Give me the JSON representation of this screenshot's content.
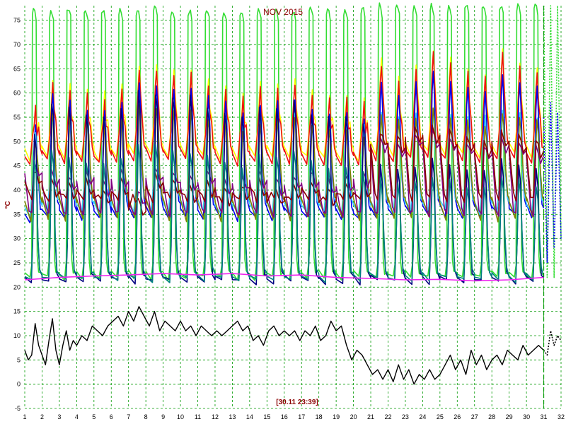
{
  "chart_data": {
    "type": "line",
    "title": "NOV 2015",
    "ylabel": "°C",
    "cursor_label": "[30.11 23:39]",
    "xlim": [
      1,
      32
    ],
    "ylim": [
      -5,
      78
    ],
    "x_ticks": [
      1,
      2,
      3,
      4,
      5,
      6,
      7,
      8,
      9,
      10,
      11,
      12,
      13,
      14,
      15,
      16,
      17,
      18,
      19,
      20,
      21,
      22,
      23,
      24,
      25,
      26,
      27,
      28,
      29,
      30,
      31,
      32
    ],
    "y_ticks": [
      -5,
      0,
      5,
      10,
      15,
      20,
      25,
      30,
      35,
      40,
      45,
      50,
      55,
      60,
      65,
      70,
      75
    ],
    "grid": true,
    "cursor_x": 31.0,
    "series": [
      {
        "color": "#33dd33",
        "kind": "collector",
        "style": "solid",
        "start": 1.0,
        "end": 31.0,
        "min": 22,
        "peak": [
          77.5,
          77,
          77.5,
          77,
          77,
          77.5,
          77,
          77.5,
          77,
          77,
          77.5,
          77,
          77,
          77.5,
          77,
          77,
          77.5,
          77,
          77,
          77.5,
          78,
          78,
          78,
          78,
          78,
          78,
          78,
          78,
          78,
          78
        ]
      },
      {
        "color": "#ffff00",
        "kind": "tank",
        "style": "solid",
        "start": 1.0,
        "end": 31.0,
        "min": 44,
        "peak": [
          58,
          63,
          62,
          61,
          60,
          62,
          66,
          66,
          65,
          65,
          63,
          62,
          60,
          62,
          62,
          63,
          61,
          60,
          60,
          59,
          67,
          63,
          66,
          69,
          67,
          65,
          64,
          69,
          66,
          65
        ]
      },
      {
        "color": "#ee1111",
        "kind": "tank",
        "style": "solid",
        "start": 1.0,
        "end": 31.0,
        "min": 43,
        "peak": [
          57,
          62,
          61,
          60,
          59,
          61,
          65,
          65,
          64,
          64,
          62,
          61,
          59,
          61,
          61,
          62,
          60,
          59,
          59,
          58,
          66,
          62,
          65,
          68,
          66,
          64,
          63,
          68,
          65,
          64
        ]
      },
      {
        "color": "#0000ee",
        "kind": "tank",
        "style": "solid",
        "start": 1.0,
        "end": 31.0,
        "min": 30,
        "peak": [
          54,
          60,
          58,
          57,
          56,
          58,
          62,
          62,
          61,
          61,
          59,
          58,
          56,
          58,
          58,
          59,
          57,
          56,
          56,
          55,
          62,
          60,
          62,
          64,
          62,
          61,
          60,
          64,
          62,
          61
        ]
      },
      {
        "color": "#33ccff",
        "kind": "tank",
        "style": "solid",
        "start": 1.0,
        "end": 31.0,
        "min": 32,
        "peak": [
          52,
          56,
          55,
          54,
          54,
          55,
          58,
          58,
          57,
          57,
          56,
          55,
          54,
          55,
          55,
          56,
          54,
          54,
          54,
          53,
          56,
          55,
          56,
          57,
          56,
          55,
          55,
          57,
          56,
          55
        ]
      },
      {
        "color": "#808000",
        "kind": "olive",
        "style": "solid",
        "start": 1.0,
        "end": 31.0,
        "min": 34,
        "peak": [
          50,
          56,
          55,
          54,
          53,
          55,
          58,
          57,
          56,
          56,
          55,
          54,
          52,
          54,
          54,
          55,
          53,
          52,
          52,
          51,
          55,
          54,
          55,
          57,
          55,
          54,
          53,
          56,
          55,
          54
        ]
      },
      {
        "color": "#800080",
        "kind": "mid",
        "style": "solid",
        "start": 1.0,
        "end": 31.0,
        "min": 35,
        "peak": [
          46,
          44,
          43,
          44,
          42,
          44,
          40,
          45,
          44,
          43,
          44,
          42,
          43,
          44,
          42,
          43,
          44,
          42,
          43,
          44,
          51,
          50,
          52,
          52,
          51,
          50,
          49,
          51,
          50,
          49
        ]
      },
      {
        "color": "#8b0000",
        "kind": "mid",
        "style": "solid",
        "start": 1.0,
        "end": 31.0,
        "min": 38,
        "peak": [
          44,
          42,
          41,
          42,
          40,
          42,
          38,
          43,
          42,
          41,
          42,
          40,
          41,
          42,
          40,
          41,
          42,
          40,
          41,
          42,
          52,
          51,
          53,
          53,
          52,
          51,
          50,
          52,
          51,
          50
        ]
      },
      {
        "color": "#000080",
        "kind": "return",
        "style": "solid",
        "start": 1.0,
        "end": 31.0,
        "min": 21,
        "peak": [
          52,
          58,
          57,
          56,
          55,
          57,
          60,
          60,
          59,
          59,
          57,
          56,
          55,
          57,
          57,
          58,
          56,
          55,
          55,
          54,
          45,
          44,
          45,
          46,
          45,
          44,
          44,
          46,
          45,
          44
        ]
      },
      {
        "color": "#008080",
        "kind": "return",
        "style": "solid",
        "start": 1.0,
        "end": 31.0,
        "min": 21.5,
        "peak": [
          46,
          48,
          47,
          46,
          45,
          47,
          49,
          49,
          48,
          48,
          47,
          46,
          45,
          47,
          47,
          48,
          46,
          45,
          45,
          44,
          42,
          41,
          42,
          43,
          42,
          41,
          41,
          43,
          42,
          41
        ]
      },
      {
        "color": "#ee22ee",
        "kind": "room",
        "style": "solid",
        "x": [
          1,
          3,
          5,
          7,
          9,
          11,
          13,
          15,
          17,
          19,
          21,
          23,
          25,
          27,
          29,
          31
        ],
        "y": [
          21.5,
          22,
          22.3,
          22.5,
          22.8,
          22.5,
          22.8,
          22.3,
          22.5,
          22.0,
          21.8,
          21.5,
          21.6,
          21.3,
          21.5,
          22.0
        ]
      },
      {
        "color": "#000000",
        "kind": "outdoor",
        "style": "solid",
        "x": [
          1,
          1.2,
          1.4,
          1.6,
          1.8,
          2.0,
          2.2,
          2.4,
          2.6,
          2.8,
          3.0,
          3.2,
          3.4,
          3.6,
          3.8,
          4.0,
          4.3,
          4.6,
          4.9,
          5.2,
          5.5,
          5.8,
          6.1,
          6.4,
          6.7,
          7.0,
          7.3,
          7.6,
          7.9,
          8.2,
          8.5,
          8.8,
          9.1,
          9.4,
          9.7,
          10.0,
          10.3,
          10.6,
          10.9,
          11.2,
          11.5,
          11.8,
          12.1,
          12.4,
          12.7,
          13.0,
          13.3,
          13.6,
          13.9,
          14.2,
          14.5,
          14.8,
          15.1,
          15.4,
          15.7,
          16.0,
          16.3,
          16.6,
          16.9,
          17.2,
          17.5,
          17.8,
          18.1,
          18.4,
          18.7,
          19.0,
          19.3,
          19.6,
          19.9,
          20.2,
          20.5,
          20.8,
          21.1,
          21.4,
          21.7,
          22.0,
          22.3,
          22.6,
          22.9,
          23.2,
          23.5,
          23.8,
          24.1,
          24.4,
          24.7,
          25.0,
          25.3,
          25.6,
          25.9,
          26.2,
          26.5,
          26.8,
          27.1,
          27.4,
          27.7,
          28.0,
          28.3,
          28.6,
          28.9,
          29.2,
          29.5,
          29.8,
          30.1,
          30.4,
          30.7,
          31.0
        ],
        "y": [
          7,
          5,
          6,
          12.5,
          8,
          6,
          4,
          9,
          13.5,
          7,
          4,
          8,
          11,
          7,
          9,
          8,
          10,
          9,
          12,
          11,
          10,
          12,
          13,
          14,
          12,
          15,
          13,
          16,
          14,
          12,
          15,
          11,
          13,
          12,
          11,
          13,
          11,
          12,
          10,
          12,
          11,
          10,
          11,
          10,
          11,
          12,
          13,
          11,
          12,
          9,
          10,
          8,
          11,
          12,
          10,
          11,
          10,
          11,
          9,
          11,
          10,
          12,
          9,
          10,
          13,
          11,
          12,
          8,
          5,
          7,
          6,
          4,
          2,
          3,
          1,
          3,
          0.5,
          4,
          1,
          3,
          0,
          2,
          1,
          3,
          1,
          2,
          4,
          6,
          3,
          5,
          2,
          7,
          4,
          6,
          3,
          5,
          6,
          4,
          7,
          6,
          5,
          8,
          6,
          7,
          8,
          7
        ]
      },
      {
        "color": "#33dd33",
        "kind": "future",
        "style": "dotted",
        "x": [
          31.0,
          31.2,
          31.4,
          31.6,
          31.8,
          32.0
        ],
        "y": [
          78,
          22,
          78,
          22,
          78,
          30
        ]
      },
      {
        "color": "#0000ee",
        "kind": "future",
        "style": "dotted",
        "x": [
          31.0,
          31.2,
          31.4,
          31.6,
          31.8,
          32.0
        ],
        "y": [
          55,
          25,
          58,
          28,
          56,
          30
        ]
      },
      {
        "color": "#000000",
        "kind": "future",
        "style": "dotted",
        "x": [
          31.0,
          31.2,
          31.4,
          31.6,
          31.8,
          32.0
        ],
        "y": [
          7,
          6,
          11,
          8,
          10,
          9
        ]
      }
    ]
  }
}
